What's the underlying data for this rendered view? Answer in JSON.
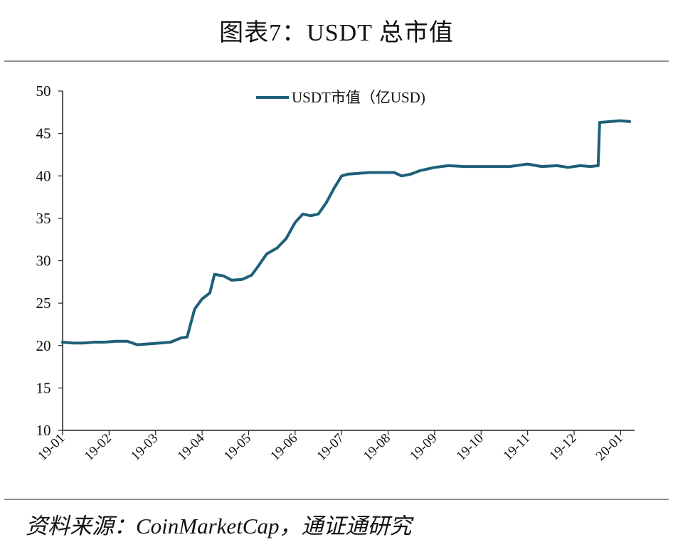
{
  "header": {
    "title": "图表7：USDT 总市值"
  },
  "footer": {
    "source": "资料来源：CoinMarketCap，通证通研究"
  },
  "chart_data": {
    "type": "line",
    "title": "图表7：USDT 总市值",
    "xlabel": "",
    "ylabel": "",
    "ylim": [
      10,
      50
    ],
    "yticks": [
      10,
      15,
      20,
      25,
      30,
      35,
      40,
      45,
      50
    ],
    "xticks": [
      "19-01",
      "19-02",
      "19-03",
      "19-04",
      "19-05",
      "19-06",
      "19-07",
      "19-08",
      "19-09",
      "19-10",
      "19-11",
      "19-12",
      "20-01"
    ],
    "legend_position": "top-center",
    "grid": false,
    "series": [
      {
        "name": "USDT市值（亿USD)",
        "color": "#1f5f7a",
        "points": [
          [
            "2019-01-01",
            20.4
          ],
          [
            "2019-01-08",
            20.3
          ],
          [
            "2019-01-15",
            20.3
          ],
          [
            "2019-01-22",
            20.4
          ],
          [
            "2019-01-29",
            20.4
          ],
          [
            "2019-02-05",
            20.5
          ],
          [
            "2019-02-12",
            20.5
          ],
          [
            "2019-02-18",
            20.1
          ],
          [
            "2019-02-25",
            20.2
          ],
          [
            "2019-03-04",
            20.3
          ],
          [
            "2019-03-11",
            20.4
          ],
          [
            "2019-03-18",
            20.9
          ],
          [
            "2019-03-22",
            21.0
          ],
          [
            "2019-03-27",
            24.3
          ],
          [
            "2019-04-01",
            25.5
          ],
          [
            "2019-04-06",
            26.2
          ],
          [
            "2019-04-09",
            28.4
          ],
          [
            "2019-04-15",
            28.2
          ],
          [
            "2019-04-20",
            27.7
          ],
          [
            "2019-04-27",
            27.8
          ],
          [
            "2019-05-03",
            28.3
          ],
          [
            "2019-05-08",
            29.5
          ],
          [
            "2019-05-13",
            30.8
          ],
          [
            "2019-05-20",
            31.5
          ],
          [
            "2019-05-26",
            32.6
          ],
          [
            "2019-06-01",
            34.5
          ],
          [
            "2019-06-06",
            35.5
          ],
          [
            "2019-06-11",
            35.3
          ],
          [
            "2019-06-16",
            35.5
          ],
          [
            "2019-06-21",
            36.8
          ],
          [
            "2019-06-26",
            38.5
          ],
          [
            "2019-07-01",
            40.0
          ],
          [
            "2019-07-05",
            40.2
          ],
          [
            "2019-07-12",
            40.3
          ],
          [
            "2019-07-20",
            40.4
          ],
          [
            "2019-07-28",
            40.4
          ],
          [
            "2019-08-05",
            40.4
          ],
          [
            "2019-08-10",
            40.0
          ],
          [
            "2019-08-16",
            40.2
          ],
          [
            "2019-08-22",
            40.6
          ],
          [
            "2019-09-01",
            41.0
          ],
          [
            "2019-09-10",
            41.2
          ],
          [
            "2019-09-20",
            41.1
          ],
          [
            "2019-10-01",
            41.1
          ],
          [
            "2019-10-10",
            41.1
          ],
          [
            "2019-10-20",
            41.1
          ],
          [
            "2019-11-01",
            41.4
          ],
          [
            "2019-11-10",
            41.1
          ],
          [
            "2019-11-20",
            41.2
          ],
          [
            "2019-11-27",
            41.0
          ],
          [
            "2019-12-05",
            41.2
          ],
          [
            "2019-12-12",
            41.1
          ],
          [
            "2019-12-17",
            41.2
          ],
          [
            "2019-12-18",
            46.3
          ],
          [
            "2019-12-25",
            46.4
          ],
          [
            "2020-01-01",
            46.5
          ],
          [
            "2020-01-07",
            46.4
          ]
        ]
      }
    ]
  }
}
